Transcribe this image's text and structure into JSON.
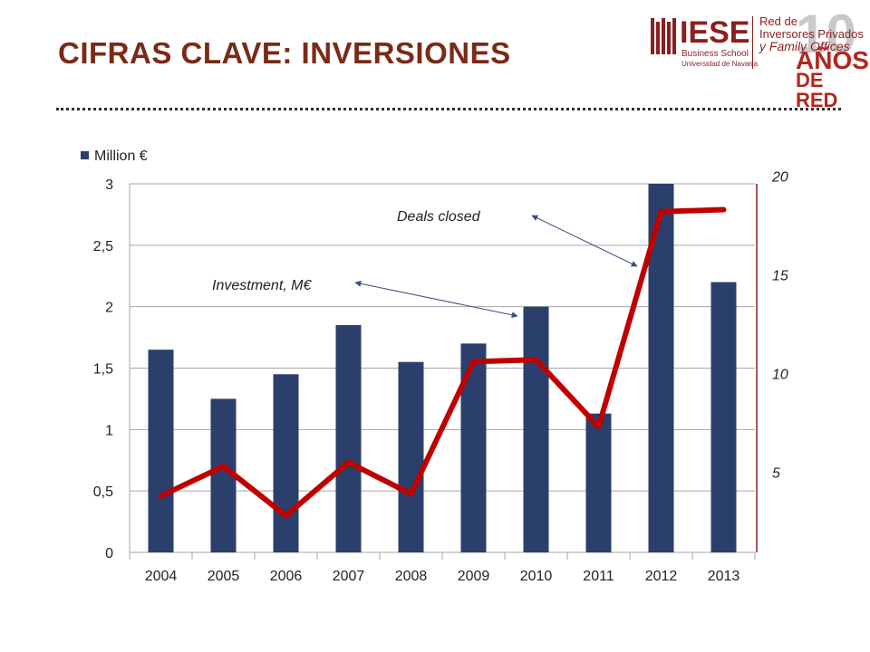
{
  "slide": {
    "title": "CIFRAS CLAVE: INVERSIONES"
  },
  "logo": {
    "brand": "IESE",
    "school": "Business School",
    "university": "Universidad de Navarra",
    "red_line1": "Red de",
    "red_line2": "Inversores Privados",
    "red_line3": "y Family Offices",
    "ten": "10",
    "anos": "AÑOS",
    "de_red": "DE RED"
  },
  "colors": {
    "title": "#7a2a17",
    "bar": "#2b3f6c",
    "line": "#c00000",
    "grid": "#a6a6a6",
    "right_axis": "#8b1f1f"
  },
  "chart_data": {
    "type": "bar",
    "categories": [
      "2004",
      "2005",
      "2006",
      "2007",
      "2008",
      "2009",
      "2010",
      "2011",
      "2012",
      "2013"
    ],
    "series": [
      {
        "name": "Million €",
        "type": "bar",
        "axis": "left",
        "values": [
          1.65,
          1.25,
          1.45,
          1.85,
          1.55,
          1.7,
          2.0,
          1.13,
          3.0,
          2.2
        ]
      },
      {
        "type": "line",
        "axis": "right",
        "values": [
          3.8,
          5.3,
          2.8,
          5.5,
          3.9,
          10.6,
          10.7,
          7.3,
          18.2,
          18.3
        ]
      }
    ],
    "y_left": {
      "min": 0,
      "max": 3,
      "ticks": [
        "0",
        "0,5",
        "1",
        "1,5",
        "2",
        "2,5",
        "3"
      ]
    },
    "y_right": {
      "ticks": [
        {
          "label": "5",
          "value": 5
        },
        {
          "label": "10",
          "value": 10
        },
        {
          "label": "15",
          "value": 15
        },
        {
          "label": "20",
          "value": 20
        }
      ]
    },
    "annotations": [
      {
        "text": "Deals closed",
        "series": "line",
        "arrow_to_index": 8
      },
      {
        "text": "Investment, M€",
        "series": "bar",
        "arrow_to_index": 6
      }
    ],
    "legend": "top-left",
    "grid": true
  }
}
